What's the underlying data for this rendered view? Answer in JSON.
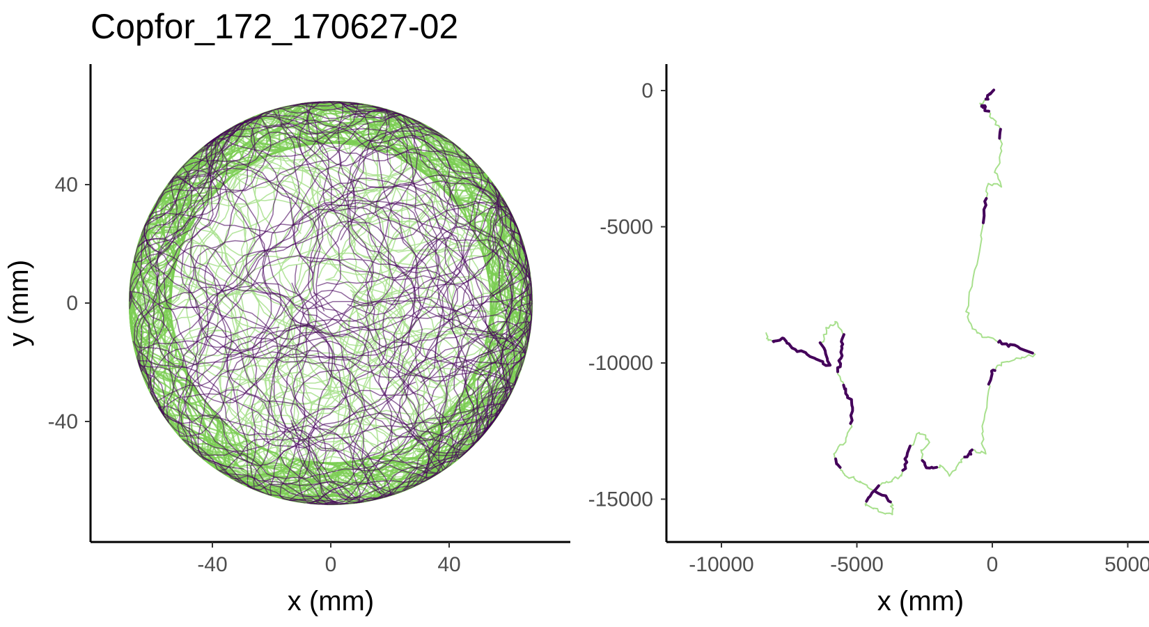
{
  "title": "Copfor_172_170627-02",
  "colors": {
    "active": "#7ACD52",
    "active_light": "#A8E08D",
    "inactive": "#44005A",
    "axis": "#000000",
    "tick_text": "#4d4d4d"
  },
  "chart_data": [
    {
      "type": "scatter",
      "panel": "arena-trajectory",
      "title": "Copfor_172_170627-02",
      "xlabel": "x (mm)",
      "ylabel": "y (mm)",
      "xlim": [
        -77,
        77
      ],
      "ylim": [
        -77,
        77
      ],
      "x_ticks": [
        -40,
        0,
        40
      ],
      "x_tick_labels": [
        "-40",
        "0",
        "40"
      ],
      "y_ticks": [
        -40,
        0,
        40
      ],
      "y_tick_labels": [
        "-40",
        "0",
        "40"
      ],
      "grid": false,
      "arena": {
        "center": [
          0,
          0
        ],
        "radius": 68
      },
      "series": [
        {
          "color": "#7ACD52",
          "description_values": "dense looping trajectory concentrated near the arena wall (radius ~55-68 mm)"
        },
        {
          "color": "#44005A",
          "description_values": "looping trajectory spread over the arena interior (radius 0-68 mm)"
        }
      ]
    },
    {
      "type": "line",
      "panel": "integrated-path",
      "xlabel": "x (mm)",
      "ylabel": "",
      "xlim": [
        -12000,
        5000
      ],
      "ylim": [
        -16500,
        800
      ],
      "x_ticks": [
        -10000,
        -5000,
        0,
        5000
      ],
      "x_tick_labels": [
        "-10000",
        "-5000",
        "0",
        "5000"
      ],
      "y_ticks": [
        0,
        -5000,
        -10000,
        -15000
      ],
      "y_tick_labels": [
        "0",
        "-5000",
        "-10000",
        "-15000"
      ],
      "grid": false,
      "path": [
        [
          0,
          0
        ],
        [
          -200,
          -300
        ],
        [
          -400,
          -500
        ],
        [
          -300,
          -650
        ],
        [
          -50,
          -900
        ],
        [
          250,
          -1400
        ],
        [
          350,
          -2200
        ],
        [
          120,
          -3000
        ],
        [
          350,
          -3500
        ],
        [
          -200,
          -3450
        ],
        [
          -250,
          -4200
        ],
        [
          -400,
          -5500
        ],
        [
          -700,
          -6800
        ],
        [
          -950,
          -8100
        ],
        [
          -750,
          -8700
        ],
        [
          -400,
          -9000
        ],
        [
          200,
          -9200
        ],
        [
          800,
          -9400
        ],
        [
          1600,
          -9700
        ],
        [
          900,
          -9800
        ],
        [
          300,
          -10050
        ],
        [
          0,
          -10300
        ],
        [
          -150,
          -11200
        ],
        [
          -400,
          -12500
        ],
        [
          -300,
          -13300
        ],
        [
          -700,
          -13200
        ],
        [
          -1100,
          -13500
        ],
        [
          -1550,
          -14100
        ],
        [
          -1900,
          -13800
        ],
        [
          -2400,
          -13900
        ],
        [
          -2650,
          -13300
        ],
        [
          -2300,
          -12900
        ],
        [
          -2700,
          -12500
        ],
        [
          -3150,
          -13400
        ],
        [
          -3300,
          -14100
        ],
        [
          -3750,
          -14300
        ],
        [
          -4250,
          -14500
        ],
        [
          -4700,
          -15200
        ],
        [
          -4300,
          -15400
        ],
        [
          -3700,
          -15600
        ],
        [
          -3700,
          -15100
        ],
        [
          -4500,
          -14600
        ],
        [
          -5000,
          -14300
        ],
        [
          -5500,
          -14100
        ],
        [
          -5700,
          -13700
        ],
        [
          -5900,
          -13300
        ],
        [
          -5400,
          -12900
        ],
        [
          -5200,
          -12200
        ],
        [
          -5200,
          -11400
        ],
        [
          -5500,
          -10900
        ],
        [
          -5700,
          -10300
        ],
        [
          -5600,
          -9700
        ],
        [
          -5500,
          -9100
        ],
        [
          -5700,
          -8500
        ],
        [
          -6100,
          -8700
        ],
        [
          -6300,
          -9300
        ],
        [
          -6000,
          -10100
        ],
        [
          -6600,
          -9800
        ],
        [
          -7300,
          -9500
        ],
        [
          -7700,
          -9100
        ],
        [
          -8200,
          -9200
        ],
        [
          -8350,
          -8900
        ]
      ],
      "series": [
        {
          "color": "#A8E08D",
          "description_values": "connecting path (moving segments)"
        },
        {
          "color": "#44005A",
          "description_values": "highlighted segments along the path"
        }
      ]
    }
  ]
}
